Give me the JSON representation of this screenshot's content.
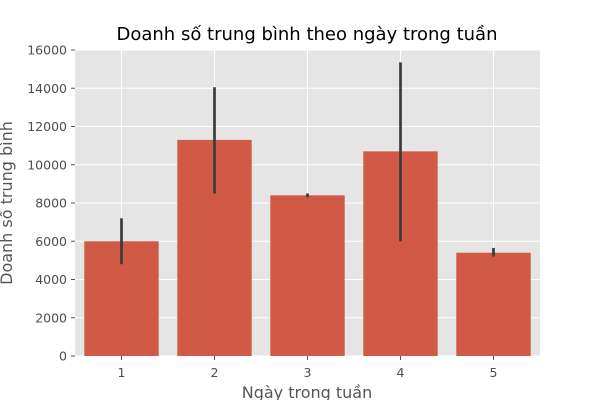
{
  "chart_data": {
    "type": "bar",
    "title": "Doanh số trung bình theo ngày trong tuần",
    "xlabel": "Ngày trong tuần",
    "ylabel": "Doanh số trung bình",
    "categories": [
      "1",
      "2",
      "3",
      "4",
      "5"
    ],
    "values": [
      6000,
      11300,
      8400,
      10700,
      5400
    ],
    "error_bars": [
      [
        4800,
        7200
      ],
      [
        8500,
        14050
      ],
      [
        8300,
        8500
      ],
      [
        6000,
        15350
      ],
      [
        5200,
        5650
      ]
    ],
    "ylim": [
      0,
      16000
    ],
    "yticks": [
      "0",
      "2000",
      "4000",
      "6000",
      "8000",
      "10000",
      "12000",
      "14000",
      "16000"
    ],
    "ytick_values": [
      0,
      2000,
      4000,
      6000,
      8000,
      10000,
      12000,
      14000,
      16000
    ],
    "grid": true,
    "legend": "none",
    "colors": {
      "bar": "#d05a46",
      "error_bar": "#3b3b3b",
      "plot_background": "#e5e5e5",
      "grid": "#ffffff"
    }
  }
}
